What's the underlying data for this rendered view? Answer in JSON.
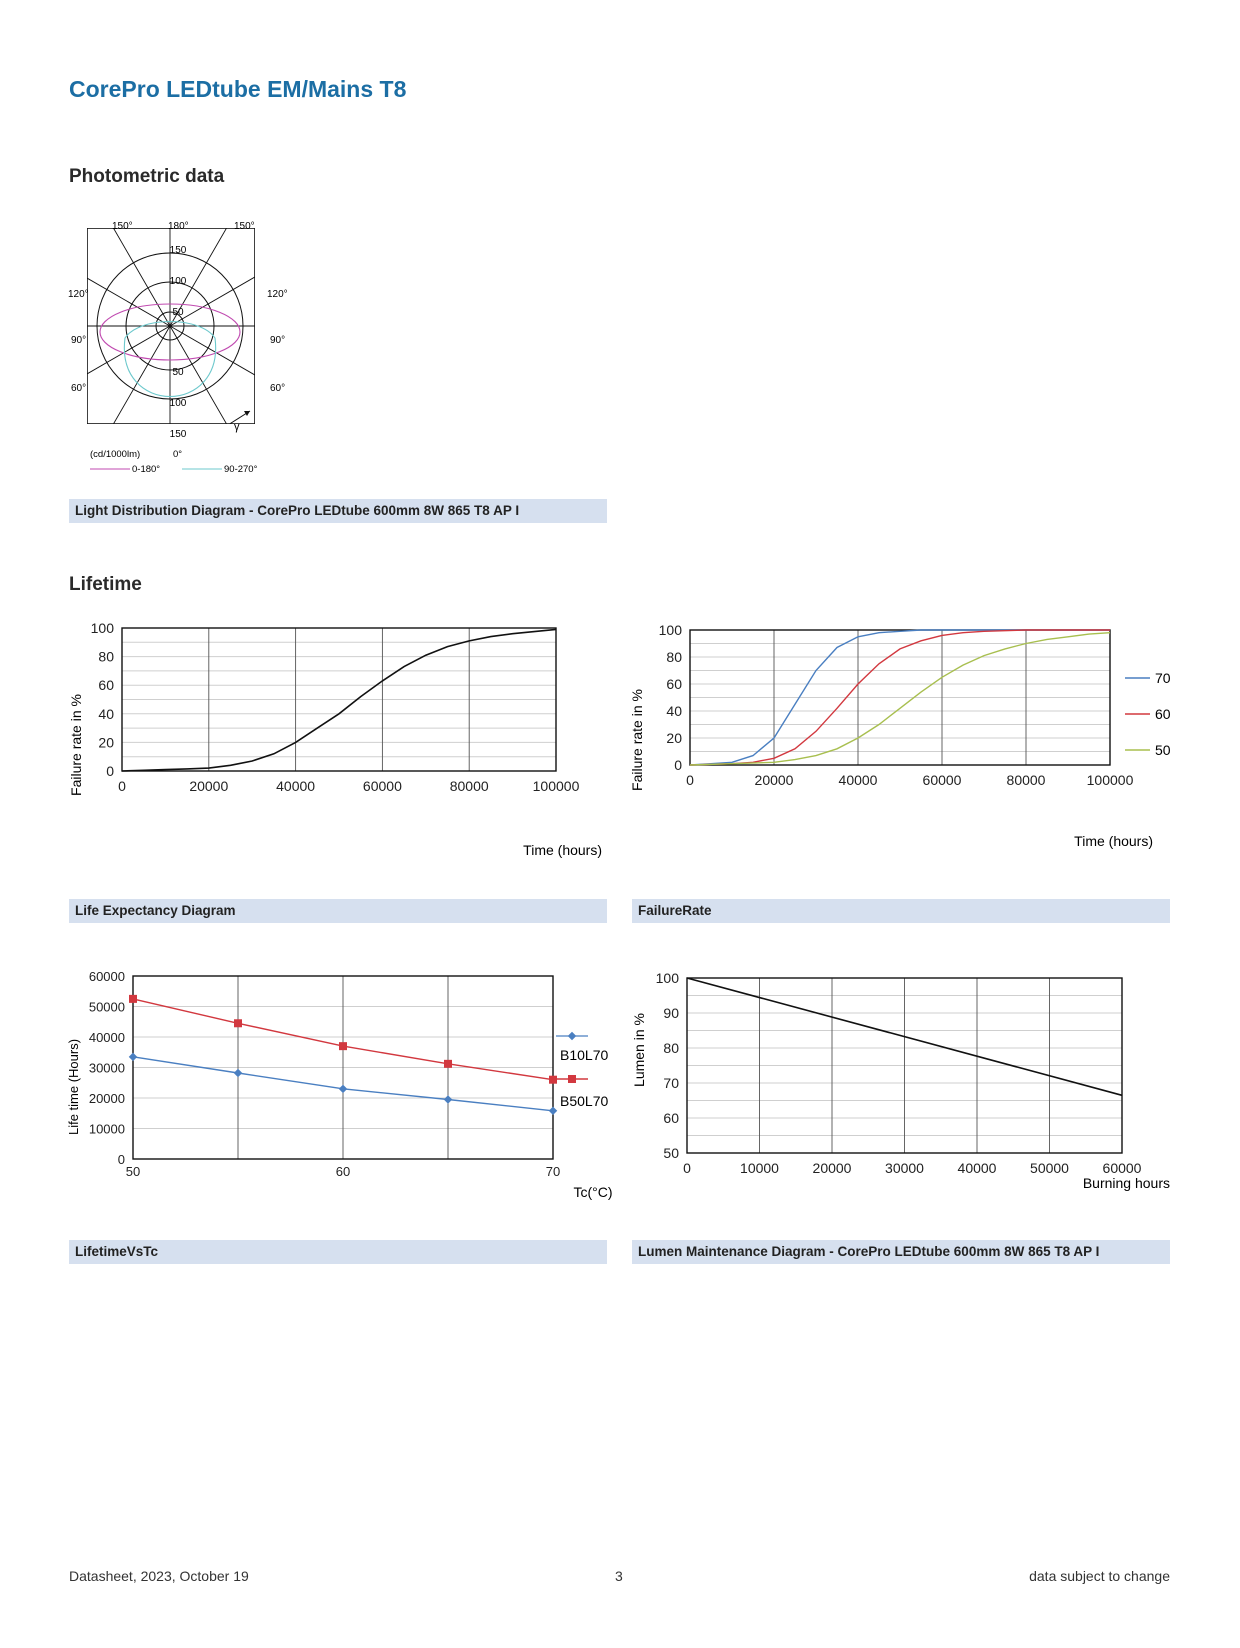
{
  "page": {
    "title": "CorePro LEDtube EM/Mains T8",
    "sections": {
      "photometric": "Photometric data",
      "lifetime": "Lifetime"
    },
    "footer": {
      "left": "Datasheet, 2023, October 19",
      "center": "3",
      "right": "data subject to change"
    }
  },
  "colors": {
    "title": "#1c6ea4",
    "caption_bg": "#d6e0ef",
    "series_blue": "#4a7fc1",
    "series_red": "#d2383f",
    "series_green": "#a8bf4f",
    "polar_0_180": "#c04ab0",
    "polar_90_270": "#6cc8cc"
  },
  "charts": {
    "polar": {
      "caption": "Light Distribution Diagram - CorePro LEDtube 600mm 8W 865 T8 AP I",
      "top_labels": [
        "150°",
        "180°",
        "150°"
      ],
      "left_labels": [
        "120°",
        "90°",
        "60°"
      ],
      "right_labels": [
        "120°",
        "90°",
        "60°"
      ],
      "radial_ticks_top": [
        "150",
        "100",
        "50"
      ],
      "radial_ticks_bottom": [
        "50",
        "100",
        "150"
      ],
      "unit": "(cd/1000lm)",
      "bottom_angle": "0°",
      "gamma_symbol": "γ",
      "legend": [
        "0-180°",
        "90-270°"
      ]
    },
    "life_expectancy": {
      "caption": "Life Expectancy Diagram",
      "ylabel": "Failure rate in %",
      "xlabel": "Time (hours)",
      "x_ticks": [
        "0",
        "20000",
        "40000",
        "60000",
        "80000",
        "100000"
      ],
      "y_ticks": [
        "0",
        "20",
        "40",
        "60",
        "80",
        "100"
      ]
    },
    "failure_rate": {
      "caption": "FailureRate",
      "ylabel": "Failure rate in %",
      "xlabel": "Time (hours)",
      "x_ticks": [
        "0",
        "20000",
        "40000",
        "60000",
        "80000",
        "100000"
      ],
      "y_ticks": [
        "0",
        "20",
        "40",
        "60",
        "80",
        "100"
      ],
      "legend": [
        "70",
        "60",
        "50"
      ]
    },
    "lifetime_vs_tc": {
      "caption": "LifetimeVsTc",
      "ylabel": "Life time (Hours)",
      "xlabel": "Tc(°C)",
      "x_ticks": [
        "50",
        "60",
        "70"
      ],
      "y_ticks": [
        "0",
        "10000",
        "20000",
        "30000",
        "40000",
        "50000",
        "60000"
      ],
      "legend": [
        "B10L70",
        "B50L70"
      ]
    },
    "lumen_maintenance": {
      "caption": "Lumen Maintenance Diagram - CorePro LEDtube 600mm 8W 865 T8 AP I",
      "ylabel": "Lumen in %",
      "xlabel": "Burning hours",
      "x_ticks": [
        "0",
        "10000",
        "20000",
        "30000",
        "40000",
        "50000",
        "60000"
      ],
      "y_ticks": [
        "50",
        "60",
        "70",
        "80",
        "90",
        "100"
      ]
    }
  },
  "chart_data": [
    {
      "type": "line",
      "name_ref": "life_expectancy",
      "xlim": [
        0,
        100000
      ],
      "ylim": [
        0,
        100
      ],
      "series": [
        {
          "x": [
            0,
            5000,
            10000,
            15000,
            20000,
            25000,
            30000,
            35000,
            40000,
            45000,
            50000,
            55000,
            60000,
            65000,
            70000,
            75000,
            80000,
            85000,
            90000,
            95000,
            100000
          ],
          "y": [
            0,
            0.5,
            1,
            1.5,
            2,
            4,
            7,
            12,
            20,
            30,
            40,
            52,
            63,
            73,
            81,
            87,
            91,
            94,
            96,
            97.5,
            99
          ]
        }
      ]
    },
    {
      "type": "line",
      "name_ref": "failure_rate",
      "xlim": [
        0,
        100000
      ],
      "ylim": [
        0,
        100
      ],
      "series": [
        {
          "name": "70",
          "x": [
            0,
            5000,
            10000,
            15000,
            20000,
            25000,
            30000,
            35000,
            40000,
            45000,
            50000,
            55000,
            60000,
            70000,
            80000,
            100000
          ],
          "y": [
            0,
            1,
            2,
            7,
            20,
            45,
            70,
            87,
            95,
            98,
            99,
            100,
            100,
            100,
            100,
            100
          ]
        },
        {
          "name": "60",
          "x": [
            0,
            5000,
            10000,
            15000,
            20000,
            25000,
            30000,
            35000,
            40000,
            45000,
            50000,
            55000,
            60000,
            65000,
            70000,
            80000,
            90000,
            100000
          ],
          "y": [
            0,
            0.5,
            1,
            2,
            5,
            12,
            25,
            42,
            60,
            75,
            86,
            92,
            96,
            98,
            99,
            100,
            100,
            100
          ]
        },
        {
          "name": "50",
          "x": [
            0,
            10000,
            20000,
            25000,
            30000,
            35000,
            40000,
            45000,
            50000,
            55000,
            60000,
            65000,
            70000,
            75000,
            80000,
            85000,
            90000,
            95000,
            100000
          ],
          "y": [
            0,
            1,
            2,
            4,
            7,
            12,
            20,
            30,
            42,
            54,
            65,
            74,
            81,
            86,
            90,
            93,
            95,
            97,
            98
          ]
        }
      ]
    },
    {
      "type": "line",
      "name_ref": "lifetime_vs_tc",
      "xlim": [
        50,
        70
      ],
      "ylim": [
        0,
        60000
      ],
      "series": [
        {
          "name": "B10L70",
          "x": [
            50,
            55,
            60,
            65,
            70
          ],
          "y": [
            33500,
            28200,
            23000,
            19500,
            15800
          ]
        },
        {
          "name": "B50L70",
          "x": [
            50,
            55,
            60,
            65,
            70
          ],
          "y": [
            52500,
            44500,
            37000,
            31200,
            26000
          ]
        }
      ]
    },
    {
      "type": "line",
      "name_ref": "lumen_maintenance",
      "xlim": [
        0,
        60000
      ],
      "ylim": [
        50,
        100
      ],
      "series": [
        {
          "x": [
            0,
            60000
          ],
          "y": [
            100,
            66.5
          ]
        }
      ]
    }
  ]
}
